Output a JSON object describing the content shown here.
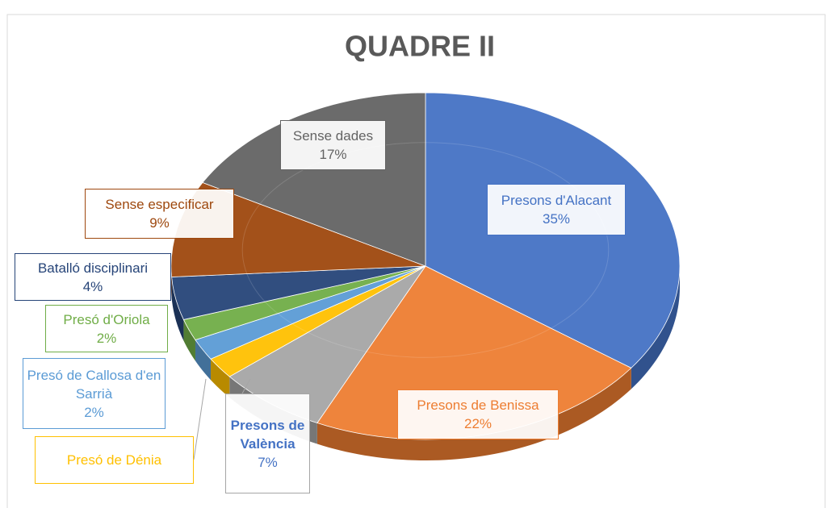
{
  "chart_data": {
    "type": "pie",
    "title": "QUADRE II",
    "categories": [
      "Presons d'Alacant",
      "Presons de Benissa",
      "Presons de València",
      "Presó de Dénia",
      "Presó de Callosa d'en Sarrià",
      "Presó d'Oriola",
      "Batalló disciplinari",
      "Sense especificar",
      "Sense dades"
    ],
    "values": [
      35,
      22,
      7,
      2,
      2,
      2,
      4,
      9,
      17
    ],
    "value_labels": [
      "35%",
      "22%",
      "7%",
      null,
      "2%",
      "2%",
      "4%",
      "9%",
      "17%"
    ],
    "colors": [
      "#4472c4",
      "#ed7d31",
      "#a5a5a5",
      "#ffc000",
      "#5b9bd5",
      "#70ad47",
      "#264478",
      "#9e480e",
      "#636363"
    ]
  }
}
